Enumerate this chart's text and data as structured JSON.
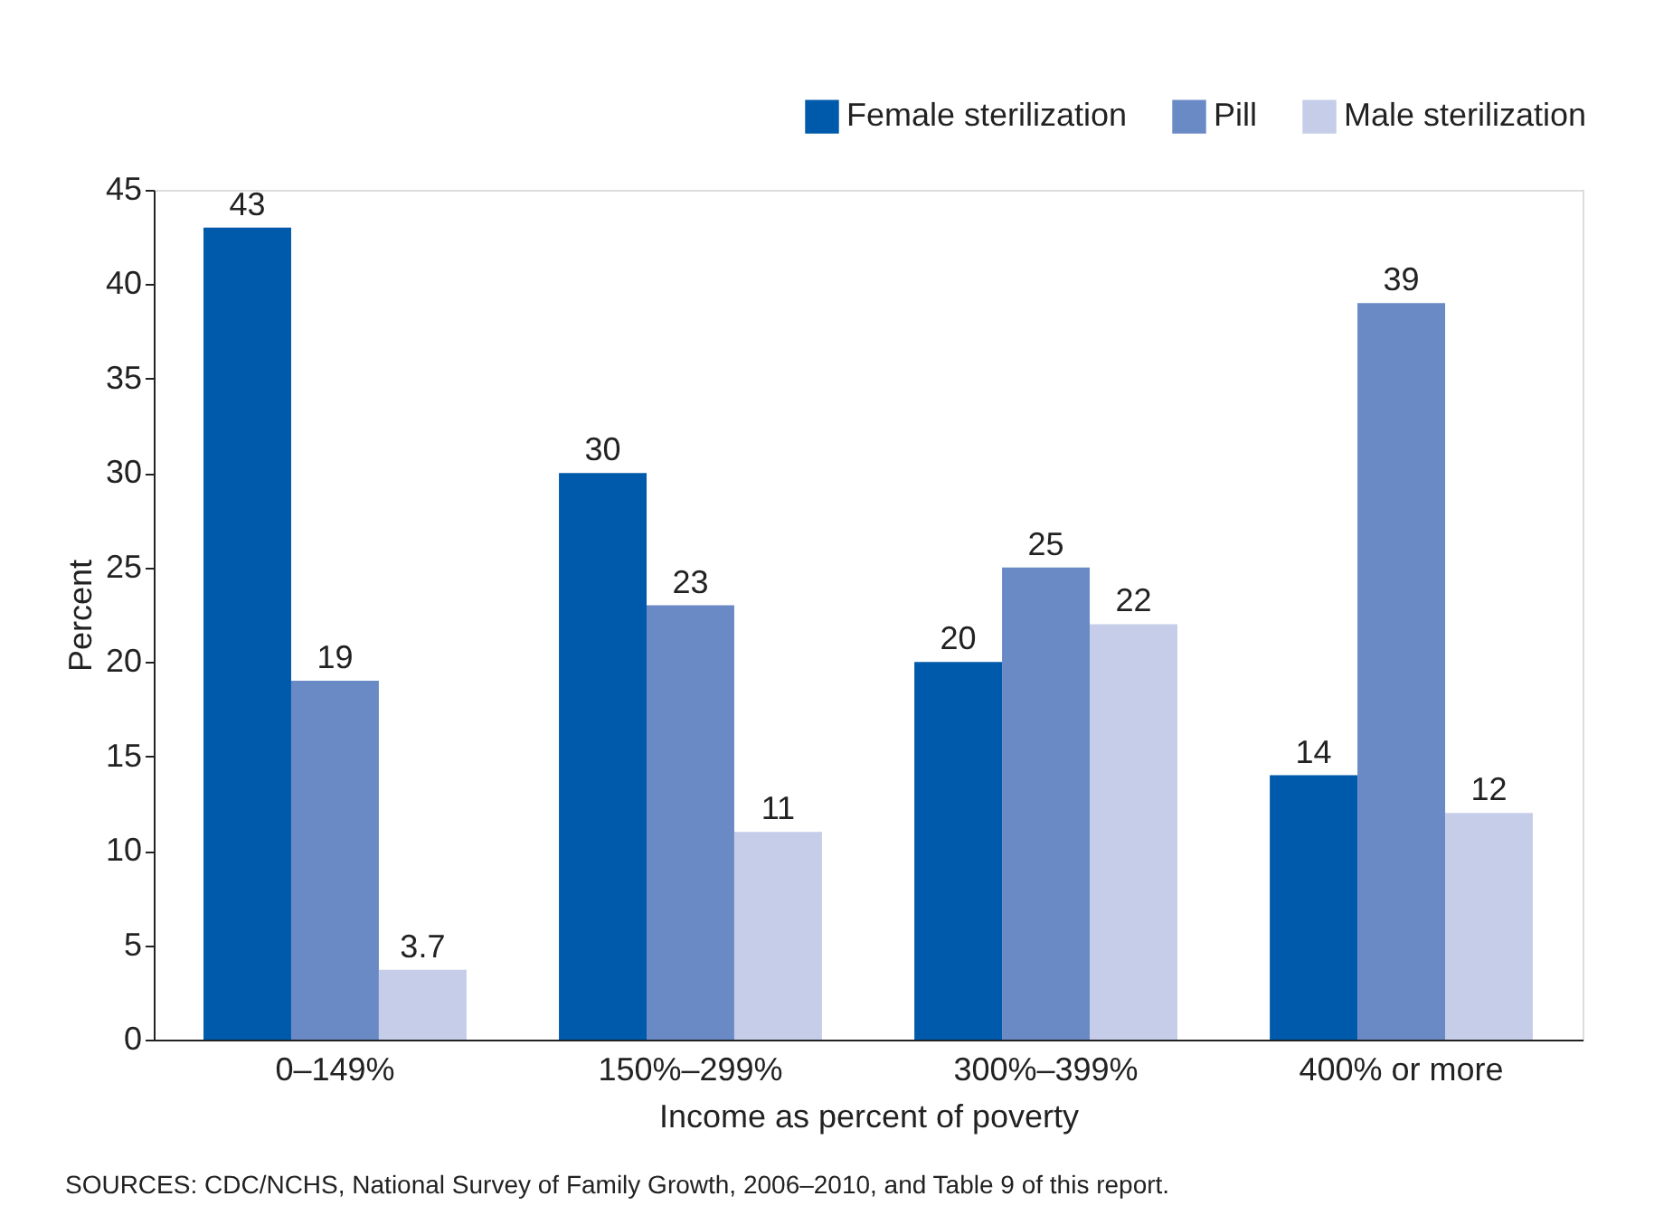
{
  "chart_data": {
    "type": "bar",
    "xlabel": "Income as percent of poverty",
    "ylabel": "Percent",
    "categories": [
      "0–149%",
      "150%–299%",
      "300%–399%",
      "400% or more"
    ],
    "series": [
      {
        "name": "Female sterilization",
        "color": "#005aab",
        "values": [
          43,
          30,
          20,
          14
        ]
      },
      {
        "name": "Pill",
        "color": "#6a8ac6",
        "values": [
          19,
          23,
          25,
          39
        ]
      },
      {
        "name": "Male sterilization",
        "color": "#c5cde9",
        "values": [
          3.7,
          11,
          22,
          12
        ]
      }
    ],
    "ylim": [
      0,
      45
    ],
    "yticks": [
      0,
      5,
      10,
      15,
      20,
      25,
      30,
      35,
      40,
      45
    ],
    "data_labels": true,
    "grid": false,
    "legend": "top right",
    "annotations": [
      "SOURCES: CDC/NCHS, National Survey of Family Growth, 2006–2010, and Table 9 of this report."
    ]
  }
}
